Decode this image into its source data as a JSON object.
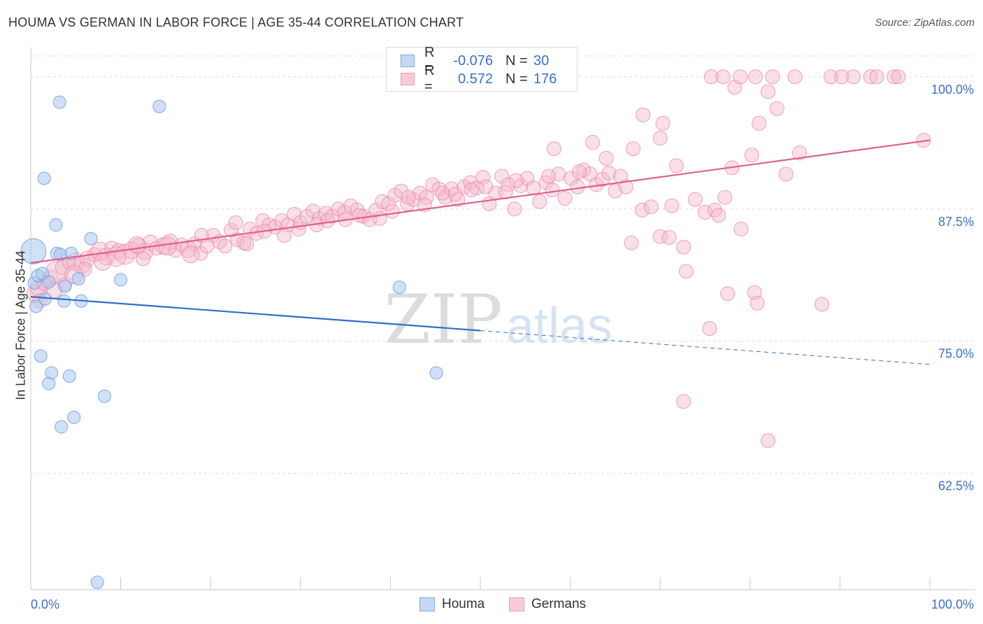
{
  "header": {
    "title": "HOUMA VS GERMAN IN LABOR FORCE | AGE 35-44 CORRELATION CHART",
    "source": "Source: ZipAtlas.com"
  },
  "watermark": {
    "zip": "ZIP",
    "atlas": "atlas"
  },
  "legend": {
    "houma": {
      "r_label": "R =",
      "r_value": "-0.076",
      "n_label": "N =",
      "n_value": "30"
    },
    "germans": {
      "r_label": "R =",
      "r_value": "0.572",
      "n_label": "N =",
      "n_value": "176"
    }
  },
  "colors": {
    "houma_fill": "#a9c8f0",
    "houma_stroke": "#6f9ee0",
    "houma_line": "#2e6fcc",
    "germans_fill": "#f5b7cb",
    "germans_stroke": "#e98aa8",
    "germans_line": "#e0608e",
    "tick_label": "#3b6fcc",
    "grid": "#dddddd"
  },
  "chart_data": {
    "type": "scatter",
    "title": "HOUMA VS GERMAN IN LABOR FORCE | AGE 35-44 CORRELATION CHART",
    "xlabel": "",
    "ylabel": "In Labor Force | Age 35-44",
    "xlim": [
      0,
      100
    ],
    "ylim": [
      51.5,
      102.5
    ],
    "x_tick_labels": {
      "min": "0.0%",
      "max": "100.0%"
    },
    "y_ticks": [
      {
        "value": 100,
        "label": "100.0%"
      },
      {
        "value": 87.5,
        "label": "87.5%"
      },
      {
        "value": 75,
        "label": "75.0%"
      },
      {
        "value": 62.5,
        "label": "62.5%"
      }
    ],
    "series": [
      {
        "name": "Houma",
        "r": -0.076,
        "n": 30,
        "trend": {
          "x0": 0,
          "y0": 79.2,
          "x1": 50,
          "y1": 76.0,
          "dash_to_x": 100,
          "dash_to_y": 72.8
        },
        "points": [
          [
            0.3,
            83.5,
            18
          ],
          [
            0.4,
            80.5,
            9
          ],
          [
            0.6,
            78.3,
            9
          ],
          [
            0.8,
            81.2,
            9
          ],
          [
            1.3,
            81.4,
            9
          ],
          [
            1.6,
            79.0,
            9
          ],
          [
            2.0,
            80.6,
            9
          ],
          [
            1.1,
            73.6,
            9
          ],
          [
            1.5,
            90.4,
            9
          ],
          [
            3.2,
            97.6,
            9
          ],
          [
            2.8,
            86.0,
            9
          ],
          [
            2.9,
            83.3,
            9
          ],
          [
            3.3,
            83.2,
            9
          ],
          [
            3.8,
            80.2,
            9
          ],
          [
            3.7,
            78.8,
            9
          ],
          [
            4.5,
            83.3,
            9
          ],
          [
            5.3,
            80.9,
            9
          ],
          [
            5.6,
            78.8,
            9
          ],
          [
            6.7,
            84.7,
            9
          ],
          [
            2.3,
            72.0,
            9
          ],
          [
            2.0,
            71.0,
            9
          ],
          [
            4.3,
            71.7,
            9
          ],
          [
            8.2,
            69.8,
            9
          ],
          [
            4.8,
            67.8,
            9
          ],
          [
            3.4,
            66.9,
            9
          ],
          [
            10.0,
            80.8,
            9
          ],
          [
            14.3,
            97.2,
            9
          ],
          [
            41.0,
            80.1,
            9
          ],
          [
            45.1,
            72.0,
            9
          ],
          [
            7.4,
            52.2,
            9
          ]
        ]
      },
      {
        "name": "Germans",
        "r": 0.572,
        "n": 176,
        "trend": {
          "x0": 0,
          "y0": 82.4,
          "x1": 100,
          "y1": 94.0
        },
        "points": [
          [
            0.6,
            79.5,
            13
          ],
          [
            0.9,
            80.0,
            12
          ],
          [
            1.5,
            80.5,
            11
          ],
          [
            2.2,
            81.0,
            11
          ],
          [
            2.9,
            81.5,
            16
          ],
          [
            3.6,
            82.0,
            11
          ],
          [
            4.3,
            82.4,
            10
          ],
          [
            5.0,
            82.5,
            13
          ],
          [
            5.7,
            82.2,
            12
          ],
          [
            6.3,
            82.8,
            11
          ],
          [
            7.1,
            83.2,
            10
          ],
          [
            7.7,
            83.5,
            13
          ],
          [
            8.4,
            83.0,
            12
          ],
          [
            9.0,
            83.8,
            10
          ],
          [
            9.8,
            83.5,
            11
          ],
          [
            10.5,
            83.2,
            14
          ],
          [
            11.2,
            83.6,
            12
          ],
          [
            12.0,
            84.0,
            11
          ],
          [
            12.7,
            83.5,
            12
          ],
          [
            13.3,
            84.3,
            11
          ],
          [
            14.0,
            83.8,
            10
          ],
          [
            14.8,
            84.0,
            12
          ],
          [
            15.5,
            84.4,
            11
          ],
          [
            16.1,
            83.6,
            10
          ],
          [
            16.8,
            84.1,
            10
          ],
          [
            17.5,
            83.7,
            12
          ],
          [
            18.2,
            84.2,
            10
          ],
          [
            18.9,
            83.3,
            10
          ],
          [
            19.6,
            84.0,
            10
          ],
          [
            20.3,
            85.0,
            10
          ],
          [
            21.0,
            84.4,
            10
          ],
          [
            21.6,
            84.0,
            10
          ],
          [
            22.3,
            85.5,
            10
          ],
          [
            23.0,
            84.6,
            10
          ],
          [
            23.7,
            84.3,
            10
          ],
          [
            24.4,
            85.6,
            10
          ],
          [
            25.1,
            85.2,
            10
          ],
          [
            25.8,
            86.4,
            10
          ],
          [
            26.5,
            86.0,
            10
          ],
          [
            27.2,
            85.8,
            10
          ],
          [
            27.9,
            86.4,
            10
          ],
          [
            28.6,
            86.0,
            10
          ],
          [
            29.3,
            87.0,
            10
          ],
          [
            30.0,
            86.2,
            10
          ],
          [
            30.7,
            86.8,
            10
          ],
          [
            31.4,
            87.3,
            10
          ],
          [
            32.1,
            86.6,
            10
          ],
          [
            32.8,
            87.1,
            10
          ],
          [
            33.5,
            86.8,
            10
          ],
          [
            34.2,
            87.5,
            10
          ],
          [
            34.9,
            87.2,
            10
          ],
          [
            35.6,
            87.8,
            10
          ],
          [
            36.3,
            87.4,
            10
          ],
          [
            37.0,
            86.8,
            10
          ],
          [
            37.7,
            86.5,
            10
          ],
          [
            38.4,
            87.4,
            10
          ],
          [
            39.1,
            88.2,
            10
          ],
          [
            39.8,
            88.0,
            10
          ],
          [
            40.5,
            88.8,
            10
          ],
          [
            41.2,
            89.2,
            10
          ],
          [
            41.9,
            88.0,
            10
          ],
          [
            42.6,
            88.4,
            10
          ],
          [
            43.3,
            89.0,
            10
          ],
          [
            44.0,
            88.6,
            10
          ],
          [
            44.7,
            89.8,
            10
          ],
          [
            45.4,
            89.4,
            10
          ],
          [
            46.1,
            88.6,
            10
          ],
          [
            46.8,
            89.4,
            10
          ],
          [
            47.5,
            88.4,
            10
          ],
          [
            48.2,
            89.6,
            10
          ],
          [
            48.9,
            90.0,
            10
          ],
          [
            49.6,
            89.5,
            10
          ],
          [
            50.3,
            90.5,
            10
          ],
          [
            51.0,
            88.0,
            10
          ],
          [
            51.7,
            89.0,
            10
          ],
          [
            52.4,
            90.6,
            10
          ],
          [
            53.1,
            89.8,
            10
          ],
          [
            53.8,
            87.5,
            10
          ],
          [
            54.5,
            89.7,
            10
          ],
          [
            55.2,
            90.4,
            10
          ],
          [
            55.9,
            89.5,
            10
          ],
          [
            56.6,
            88.2,
            10
          ],
          [
            57.3,
            90.0,
            10
          ],
          [
            58.0,
            89.3,
            10
          ],
          [
            58.7,
            90.8,
            10
          ],
          [
            59.4,
            88.5,
            10
          ],
          [
            60.1,
            90.4,
            10
          ],
          [
            60.8,
            89.6,
            10
          ],
          [
            61.5,
            91.2,
            10
          ],
          [
            62.2,
            90.8,
            10
          ],
          [
            62.9,
            89.8,
            10
          ],
          [
            63.6,
            90.3,
            10
          ],
          [
            64.3,
            90.9,
            10
          ],
          [
            65.0,
            89.2,
            10
          ],
          [
            65.6,
            90.6,
            10
          ],
          [
            66.2,
            89.6,
            10
          ],
          [
            64.0,
            92.3,
            10
          ],
          [
            67.0,
            93.2,
            10
          ],
          [
            68.1,
            96.4,
            10
          ],
          [
            70.0,
            94.2,
            10
          ],
          [
            70.3,
            95.6,
            10
          ],
          [
            71.8,
            91.6,
            10
          ],
          [
            62.5,
            93.8,
            10
          ],
          [
            58.2,
            93.2,
            10
          ],
          [
            66.8,
            84.3,
            10
          ],
          [
            68.0,
            87.4,
            10
          ],
          [
            69.0,
            87.7,
            10
          ],
          [
            71.3,
            87.8,
            10
          ],
          [
            70.0,
            84.9,
            10
          ],
          [
            71.0,
            84.8,
            10
          ],
          [
            72.6,
            83.9,
            10
          ],
          [
            72.9,
            81.6,
            10
          ],
          [
            73.9,
            88.4,
            10
          ],
          [
            75.0,
            87.2,
            10
          ],
          [
            76.1,
            87.4,
            10
          ],
          [
            77.2,
            88.6,
            10
          ],
          [
            78.0,
            91.4,
            10
          ],
          [
            80.2,
            92.6,
            10
          ],
          [
            81.0,
            95.6,
            10
          ],
          [
            82.0,
            98.6,
            10
          ],
          [
            83.0,
            97.0,
            10
          ],
          [
            84.0,
            90.8,
            10
          ],
          [
            76.5,
            86.9,
            10
          ],
          [
            79.0,
            85.6,
            10
          ],
          [
            75.5,
            76.2,
            10
          ],
          [
            72.6,
            69.3,
            10
          ],
          [
            77.5,
            79.5,
            10
          ],
          [
            80.5,
            79.6,
            10
          ],
          [
            80.8,
            78.6,
            10
          ],
          [
            88.0,
            78.5,
            10
          ],
          [
            82.0,
            65.6,
            10
          ],
          [
            75.7,
            100.0,
            10
          ],
          [
            77.0,
            100.0,
            10
          ],
          [
            78.3,
            99.0,
            10
          ],
          [
            78.9,
            100.0,
            10
          ],
          [
            80.6,
            100.0,
            10
          ],
          [
            82.5,
            100.0,
            10
          ],
          [
            85.0,
            100.0,
            10
          ],
          [
            89.0,
            100.0,
            10
          ],
          [
            90.2,
            100.0,
            10
          ],
          [
            91.5,
            100.0,
            10
          ],
          [
            93.4,
            100.0,
            10
          ],
          [
            94.1,
            100.0,
            10
          ],
          [
            96.0,
            100.0,
            10
          ],
          [
            96.5,
            100.0,
            10
          ],
          [
            99.3,
            94.0,
            10
          ],
          [
            85.5,
            92.8,
            10
          ],
          [
            12.5,
            82.8,
            10
          ],
          [
            9.5,
            83.0,
            14
          ],
          [
            6.0,
            81.8,
            10
          ],
          [
            3.8,
            80.4,
            10
          ],
          [
            1.0,
            78.8,
            10
          ],
          [
            2.6,
            79.8,
            11
          ],
          [
            19.0,
            85.0,
            10
          ],
          [
            22.8,
            86.2,
            10
          ],
          [
            26.0,
            85.4,
            10
          ],
          [
            29.8,
            85.6,
            10
          ],
          [
            33.0,
            86.4,
            10
          ],
          [
            36.6,
            86.9,
            10
          ],
          [
            40.2,
            87.3,
            10
          ],
          [
            43.8,
            87.9,
            10
          ],
          [
            47.2,
            88.9,
            10
          ],
          [
            50.6,
            89.6,
            10
          ],
          [
            54.0,
            90.2,
            10
          ],
          [
            57.6,
            90.6,
            10
          ],
          [
            61.0,
            91.0,
            10
          ],
          [
            15.2,
            84.0,
            13
          ],
          [
            17.8,
            83.2,
            12
          ],
          [
            11.8,
            84.1,
            12
          ],
          [
            8.0,
            82.5,
            12
          ],
          [
            4.8,
            81.3,
            13
          ],
          [
            24.0,
            84.2,
            10
          ],
          [
            28.2,
            85.0,
            10
          ],
          [
            31.8,
            86.0,
            10
          ],
          [
            35.0,
            86.5,
            10
          ],
          [
            38.8,
            86.6,
            10
          ],
          [
            42.0,
            88.6,
            10
          ],
          [
            45.8,
            89.0,
            10
          ],
          [
            49.0,
            89.3,
            10
          ],
          [
            52.8,
            89.1,
            10
          ]
        ]
      }
    ]
  },
  "bottom_legend": {
    "houma": "Houma",
    "germans": "Germans"
  }
}
